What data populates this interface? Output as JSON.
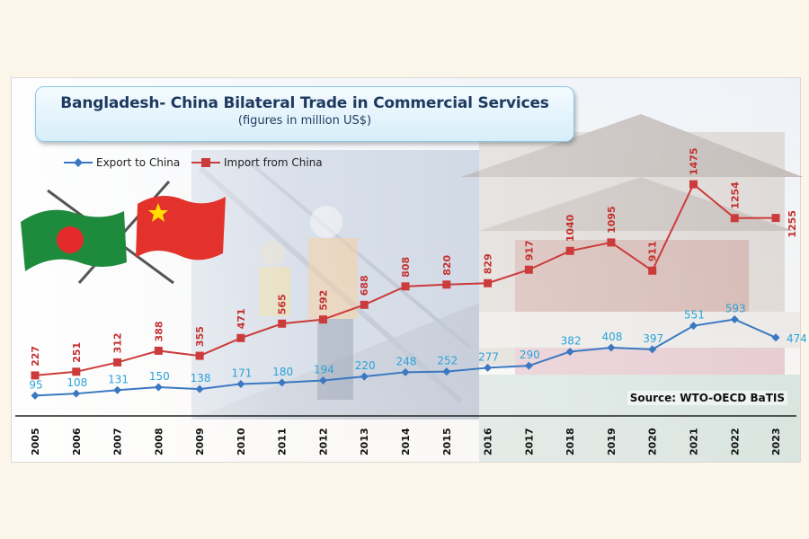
{
  "header": {
    "title": "Bangladesh- China Bilateral Trade in Commercial Services",
    "subtitle": "(figures in million US$)"
  },
  "source": "Source: WTO-OECD BaTIS",
  "colors": {
    "export": "#3a78c2",
    "export_label": "#2aa3d8",
    "import": "#cc3b3b",
    "import_label": "#c43030"
  },
  "chart_data": {
    "type": "line",
    "title": "Bangladesh- China Bilateral Trade in Commercial Services",
    "subtitle": "(figures in million US$)",
    "x": [
      "2005",
      "2006",
      "2007",
      "2008",
      "2009",
      "2010",
      "2011",
      "2012",
      "2013",
      "2014",
      "2015",
      "2016",
      "2017",
      "2018",
      "2019",
      "2020",
      "2021",
      "2022",
      "2023"
    ],
    "series": [
      {
        "name": "Export to China",
        "marker": "diamond",
        "values": [
          95,
          108,
          131,
          150,
          138,
          171,
          180,
          194,
          220,
          248,
          252,
          277,
          290,
          382,
          408,
          397,
          551,
          593,
          474
        ]
      },
      {
        "name": "Import from China",
        "marker": "square",
        "values": [
          227,
          251,
          312,
          388,
          355,
          471,
          565,
          592,
          688,
          808,
          820,
          829,
          917,
          1040,
          1095,
          911,
          1475,
          1254,
          1255
        ]
      }
    ],
    "legend_position": "top-left",
    "grid": false
  }
}
